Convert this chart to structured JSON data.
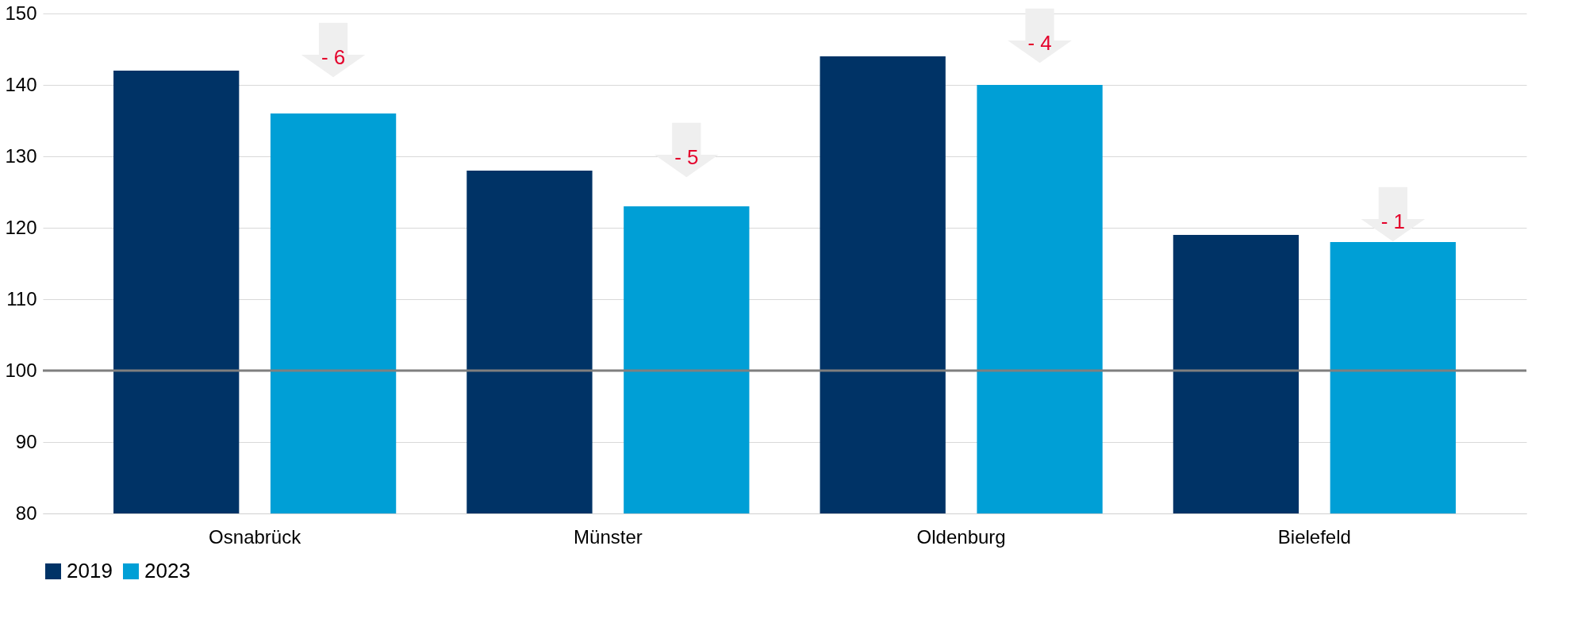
{
  "chart_data": {
    "type": "bar",
    "categories": [
      "Osnabrück",
      "Münster",
      "Oldenburg",
      "Bielefeld"
    ],
    "series": [
      {
        "name": "2019",
        "color": "#003366",
        "values": [
          142,
          128,
          144,
          119
        ]
      },
      {
        "name": "2023",
        "color": "#009fd6",
        "values": [
          136,
          123,
          140,
          118
        ]
      }
    ],
    "ylim": [
      80,
      150
    ],
    "yticks": [
      80,
      90,
      100,
      110,
      120,
      130,
      140,
      150
    ],
    "grid": "y",
    "legend": "bottom",
    "ref_lines": [
      {
        "axis": "y",
        "value": 100,
        "color": "#7f7f7f"
      }
    ],
    "annotations": [
      "- 6",
      "- 5",
      "- 4",
      "- 1"
    ]
  }
}
